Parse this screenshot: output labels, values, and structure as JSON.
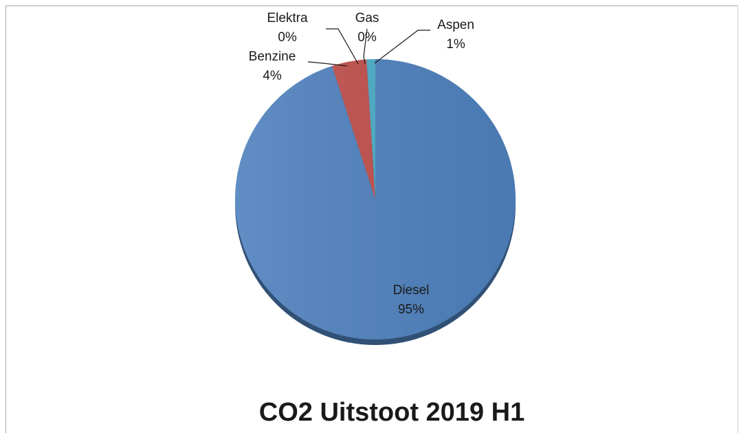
{
  "chart_data": {
    "type": "pie",
    "title": "CO2 Uitstoot 2019 H1",
    "slices": [
      {
        "name": "Diesel",
        "value": 95,
        "label": "95%",
        "color": "#4f81bd"
      },
      {
        "name": "Benzine",
        "value": 4,
        "label": "4%",
        "color": "#c0504d"
      },
      {
        "name": "Elektra",
        "value": 0,
        "label": "0%",
        "color": "#9bbb59"
      },
      {
        "name": "Gas",
        "value": 0,
        "label": "0%",
        "color": "#8064a2"
      },
      {
        "name": "Aspen",
        "value": 1,
        "label": "1%",
        "color": "#4bacc6"
      }
    ],
    "legend": "none"
  }
}
